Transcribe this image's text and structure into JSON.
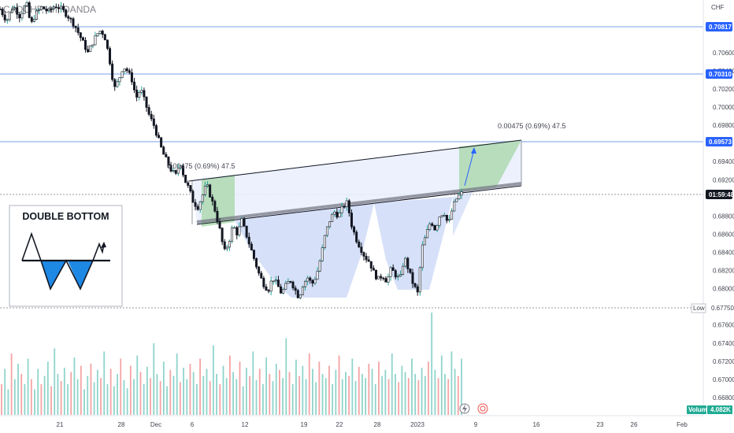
{
  "header": {
    "symbol_line": "CADCHF, 4h, OANDA",
    "currency": "CHF"
  },
  "inset": {
    "title": "DOUBLE BOTTOM"
  },
  "measure_labels": {
    "left": "0.00475 (0.69%) 47.5",
    "right": "0.00475 (0.69%) 47.5"
  },
  "price_tags": {
    "level1": "0.70817",
    "level2": "0.70310",
    "level3": "0.69573",
    "current_time": "01:59:48",
    "low_label": "Low",
    "low_value": "0.67750",
    "volume_label": "Volume",
    "volume_value": "4.082K"
  },
  "colors": {
    "up": "#26a69a",
    "down": "#131722",
    "volume_up": "#8fd4cb",
    "volume_down": "#f4a3a3",
    "pattern_fill": "#c5d3f5",
    "channel_fill": "#e9effd",
    "target_fill": "#a5d6a7",
    "tag_blue": "#2962ff",
    "tag_dark": "#131722",
    "volume_tag": "#22ab94",
    "level_line": "#bbd0f6"
  },
  "icons": [
    "lightning-icon",
    "replay-icon"
  ],
  "chart_data": {
    "type": "candlestick",
    "instrument": "CADCHF",
    "interval": "4h",
    "y_axis": {
      "label": "CHF",
      "ticks": [
        "0.70600",
        "0.70400",
        "0.70200",
        "0.70000",
        "0.69800",
        "0.69400",
        "0.69200",
        "0.68800",
        "0.68600",
        "0.68400",
        "0.68200",
        "0.68000",
        "0.67600",
        "0.67400",
        "0.67200",
        "0.67000",
        "0.66800"
      ],
      "range": [
        0.666,
        0.7118
      ]
    },
    "x_axis": {
      "ticks": [
        "21",
        "28",
        "Dec",
        "6",
        "12",
        "19",
        "22",
        "28",
        "2023",
        "9",
        "16",
        "23",
        "26",
        "Feb"
      ]
    },
    "key_levels": [
      0.70817,
      0.7031,
      0.69573,
      0.6775
    ],
    "neckline": {
      "start": 0.687,
      "end": 0.6906
    },
    "channel_top": {
      "start": 0.6917,
      "end": 0.6955
    },
    "target_move": {
      "points": 0.00475,
      "percent": "0.69%",
      "pips": 47.5
    },
    "price_path": [
      [
        0,
        0.7108
      ],
      [
        3,
        0.7095
      ],
      [
        6,
        0.7112
      ],
      [
        9,
        0.71
      ],
      [
        12,
        0.7115
      ],
      [
        14,
        0.709
      ],
      [
        16,
        0.7102
      ],
      [
        19,
        0.711
      ],
      [
        22,
        0.7105
      ],
      [
        25,
        0.7112
      ],
      [
        28,
        0.7108
      ],
      [
        31,
        0.71
      ],
      [
        34,
        0.709
      ],
      [
        37,
        0.7075
      ],
      [
        40,
        0.706
      ],
      [
        42,
        0.707
      ],
      [
        44,
        0.708
      ],
      [
        46,
        0.7085
      ],
      [
        48,
        0.7075
      ],
      [
        50,
        0.705
      ],
      [
        52,
        0.702
      ],
      [
        54,
        0.703
      ],
      [
        56,
        0.7045
      ],
      [
        58,
        0.704
      ],
      [
        60,
        0.703
      ],
      [
        62,
        0.701
      ],
      [
        64,
        0.702
      ],
      [
        66,
        0.7005
      ],
      [
        68,
        0.699
      ],
      [
        70,
        0.698
      ],
      [
        72,
        0.6965
      ],
      [
        74,
        0.695
      ],
      [
        76,
        0.694
      ],
      [
        78,
        0.693
      ],
      [
        80,
        0.6925
      ],
      [
        82,
        0.694
      ],
      [
        84,
        0.692
      ],
      [
        86,
        0.691
      ],
      [
        88,
        0.6895
      ],
      [
        90,
        0.689
      ],
      [
        92,
        0.6902
      ],
      [
        94,
        0.6915
      ],
      [
        96,
        0.69
      ],
      [
        98,
        0.6885
      ],
      [
        100,
        0.6865
      ],
      [
        102,
        0.684
      ],
      [
        104,
        0.685
      ],
      [
        106,
        0.687
      ],
      [
        108,
        0.686
      ],
      [
        110,
        0.6875
      ],
      [
        112,
        0.686
      ],
      [
        114,
        0.6845
      ],
      [
        116,
        0.683
      ],
      [
        118,
        0.6815
      ],
      [
        120,
        0.6805
      ],
      [
        122,
        0.6798
      ],
      [
        124,
        0.6812
      ],
      [
        126,
        0.6805
      ],
      [
        128,
        0.6795
      ],
      [
        130,
        0.6803
      ],
      [
        132,
        0.681
      ],
      [
        134,
        0.68
      ],
      [
        136,
        0.679
      ],
      [
        138,
        0.6806
      ],
      [
        140,
        0.6812
      ],
      [
        142,
        0.6805
      ],
      [
        144,
        0.6815
      ],
      [
        146,
        0.6835
      ],
      [
        148,
        0.686
      ],
      [
        150,
        0.6875
      ],
      [
        152,
        0.6885
      ],
      [
        154,
        0.688
      ],
      [
        156,
        0.689
      ],
      [
        158,
        0.6895
      ],
      [
        160,
        0.687
      ],
      [
        162,
        0.6855
      ],
      [
        164,
        0.6845
      ],
      [
        166,
        0.6835
      ],
      [
        168,
        0.683
      ],
      [
        170,
        0.6818
      ],
      [
        172,
        0.681
      ],
      [
        174,
        0.6815
      ],
      [
        176,
        0.6808
      ],
      [
        178,
        0.6822
      ],
      [
        180,
        0.6815
      ],
      [
        182,
        0.681
      ],
      [
        184,
        0.6835
      ],
      [
        186,
        0.682
      ],
      [
        188,
        0.6805
      ],
      [
        190,
        0.6795
      ],
      [
        192,
        0.6845
      ],
      [
        194,
        0.686
      ],
      [
        196,
        0.6875
      ],
      [
        198,
        0.6865
      ],
      [
        200,
        0.688
      ],
      [
        202,
        0.6885
      ],
      [
        204,
        0.687
      ],
      [
        206,
        0.689
      ],
      [
        208,
        0.69
      ],
      [
        210,
        0.6905
      ]
    ],
    "volume_scale": [
      0,
      1
    ],
    "volume": [
      0.3,
      0.45,
      0.25,
      0.6,
      0.35,
      0.5,
      0.4,
      0.3,
      0.55,
      0.35,
      0.25,
      0.45,
      0.3,
      0.38,
      0.52,
      0.28,
      0.65,
      0.4,
      0.33,
      0.46,
      0.3,
      0.42,
      0.56,
      0.35,
      0.48,
      0.25,
      0.38,
      0.5,
      0.32,
      0.44,
      0.36,
      0.62,
      0.3,
      0.45,
      0.28,
      0.4,
      0.55,
      0.34,
      0.26,
      0.48,
      0.35,
      0.58,
      0.42,
      0.3,
      0.47,
      0.36,
      0.7,
      0.4,
      0.33,
      0.52,
      0.28,
      0.44,
      0.38,
      0.6,
      0.32,
      0.46,
      0.35,
      0.5,
      0.42,
      0.3,
      0.55,
      0.38,
      0.45,
      0.33,
      0.68,
      0.4,
      0.3,
      0.48,
      0.36,
      0.58,
      0.42,
      0.35,
      0.52,
      0.28,
      0.46,
      0.38,
      0.62,
      0.34,
      0.45,
      0.3,
      0.56,
      0.4,
      0.33,
      0.5,
      0.44,
      0.36,
      0.75,
      0.42,
      0.3,
      0.54,
      0.38,
      0.48,
      0.35,
      0.6,
      0.45,
      0.32,
      0.52,
      0.4,
      0.36,
      0.48,
      0.3,
      0.44,
      0.58,
      0.35,
      0.42,
      0.38,
      0.55,
      0.33,
      0.47,
      0.4,
      0.36,
      0.5,
      0.45,
      0.3,
      0.52,
      0.38,
      0.44,
      0.35,
      0.6,
      0.4,
      0.32,
      0.48,
      0.42,
      0.36,
      0.55,
      0.4,
      0.34,
      0.46,
      0.38,
      0.52,
      1.0,
      0.44,
      0.36,
      0.58,
      0.4,
      0.35,
      0.62,
      0.45,
      0.38,
      0.55
    ]
  }
}
